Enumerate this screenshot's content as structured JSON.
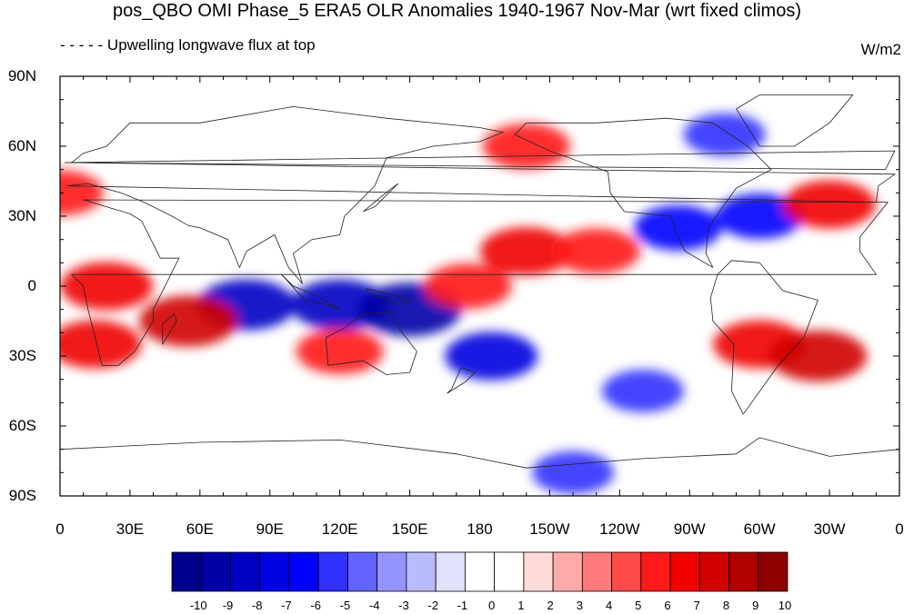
{
  "figure": {
    "title": "pos_QBO OMI Phase_5 ERA5 OLR Anomalies 1940-1967 Nov-Mar (wrt fixed climos)",
    "subtitle": "- - - - - Upwelling longwave flux at top",
    "units": "W/m2"
  },
  "map": {
    "projection": "cylindrical-equidistant",
    "lon_range": [
      0,
      360
    ],
    "lat_range": [
      -90,
      90
    ],
    "lat_ticks": [
      "90N",
      "60N",
      "30N",
      "0",
      "30S",
      "60S",
      "90S"
    ],
    "lon_ticks": [
      "0",
      "30E",
      "60E",
      "90E",
      "120E",
      "150E",
      "180",
      "150W",
      "120W",
      "90W",
      "60W",
      "30W",
      "0"
    ],
    "coastlines": true
  },
  "colorbar": {
    "labels": [
      "-10",
      "-9",
      "-8",
      "-7",
      "-6",
      "-5",
      "-4",
      "-3",
      "-2",
      "-1",
      "0",
      "1",
      "2",
      "3",
      "4",
      "5",
      "6",
      "7",
      "8",
      "9",
      "10"
    ],
    "colors": [
      "#00008c",
      "#0000a8",
      "#0000c4",
      "#0000e0",
      "#0000ff",
      "#3030ff",
      "#6262ff",
      "#9494ff",
      "#babaff",
      "#e0e0ff",
      "#ffffff",
      "#ffffff",
      "#ffdada",
      "#ffaaaa",
      "#ff7a7a",
      "#ff4a4a",
      "#ff1a1a",
      "#f00000",
      "#d00000",
      "#b00000",
      "#8c0000"
    ]
  },
  "chart_data": {
    "type": "heatmap",
    "title": "pos_QBO OMI Phase_5 ERA5 OLR Anomalies 1940-1967 Nov-Mar (wrt fixed climos)",
    "variable": "Upwelling longwave flux at top",
    "units": "W/m2",
    "x_range": [
      0,
      360
    ],
    "y_range": [
      -90,
      90
    ],
    "color_levels": [
      -10,
      -9,
      -8,
      -7,
      -6,
      -5,
      -4,
      -3,
      -2,
      -1,
      0,
      1,
      2,
      3,
      4,
      5,
      6,
      7,
      8,
      9,
      10
    ],
    "anomaly_features": [
      {
        "lon": 120,
        "lat": -8,
        "value": -8
      },
      {
        "lon": 150,
        "lat": -10,
        "value": -9
      },
      {
        "lon": 80,
        "lat": -8,
        "value": -8
      },
      {
        "lon": 200,
        "lat": 15,
        "value": 7
      },
      {
        "lon": 230,
        "lat": 15,
        "value": 6
      },
      {
        "lon": 300,
        "lat": -25,
        "value": 7
      },
      {
        "lon": 325,
        "lat": -30,
        "value": 8
      },
      {
        "lon": 265,
        "lat": 25,
        "value": -6
      },
      {
        "lon": 300,
        "lat": 30,
        "value": -6
      },
      {
        "lon": 330,
        "lat": 35,
        "value": 7
      },
      {
        "lon": 55,
        "lat": -15,
        "value": 8
      },
      {
        "lon": 20,
        "lat": 0,
        "value": 7
      },
      {
        "lon": 15,
        "lat": -25,
        "value": 7
      },
      {
        "lon": 185,
        "lat": -30,
        "value": -7
      },
      {
        "lon": 175,
        "lat": 0,
        "value": 6
      },
      {
        "lon": 120,
        "lat": -28,
        "value": 6
      },
      {
        "lon": 0,
        "lat": 40,
        "value": 6
      },
      {
        "lon": 200,
        "lat": 60,
        "value": 6
      },
      {
        "lon": 285,
        "lat": 65,
        "value": -5
      },
      {
        "lon": 220,
        "lat": -80,
        "value": -5
      },
      {
        "lon": 250,
        "lat": -45,
        "value": -5
      }
    ]
  }
}
